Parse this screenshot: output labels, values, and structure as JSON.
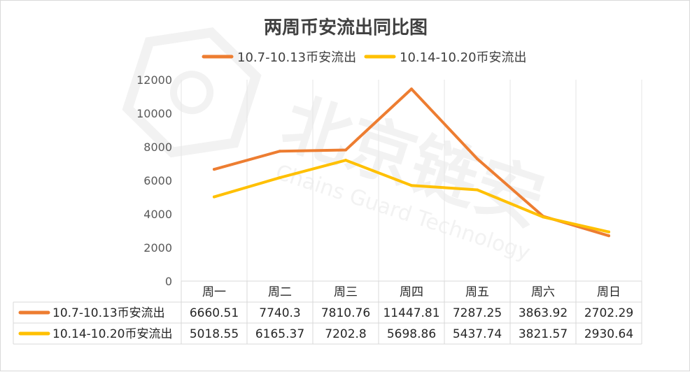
{
  "chart_data": {
    "type": "line",
    "title": "两周币安流出同比图",
    "categories": [
      "周一",
      "周二",
      "周三",
      "周四",
      "周五",
      "周六",
      "周日"
    ],
    "series": [
      {
        "name": "10.7-10.13币安流出",
        "color": "#ed7d31",
        "values": [
          6660.51,
          7740.3,
          7810.76,
          11447.81,
          7287.25,
          3863.92,
          2702.29
        ],
        "labels": [
          "6660.51",
          "7740.3",
          "7810.76",
          "11447.81",
          "7287.25",
          "3863.92",
          "2702.29"
        ]
      },
      {
        "name": "10.14-10.20币安流出",
        "color": "#ffc000",
        "values": [
          5018.55,
          6165.37,
          7202.8,
          5698.86,
          5437.74,
          3821.57,
          2930.64
        ],
        "labels": [
          "5018.55",
          "6165.37",
          "7202.8",
          "5698.86",
          "5437.74",
          "3821.57",
          "2930.64"
        ]
      }
    ],
    "yticks": [
      "0",
      "2000",
      "4000",
      "6000",
      "8000",
      "10000",
      "12000"
    ],
    "ylim": [
      0,
      12000
    ],
    "grid": "vertical",
    "legend": "top",
    "data_table": true
  },
  "watermark": {
    "text": "北京链安",
    "subtext": "Chains Guard Technology",
    "color": "#f2f2f2"
  }
}
